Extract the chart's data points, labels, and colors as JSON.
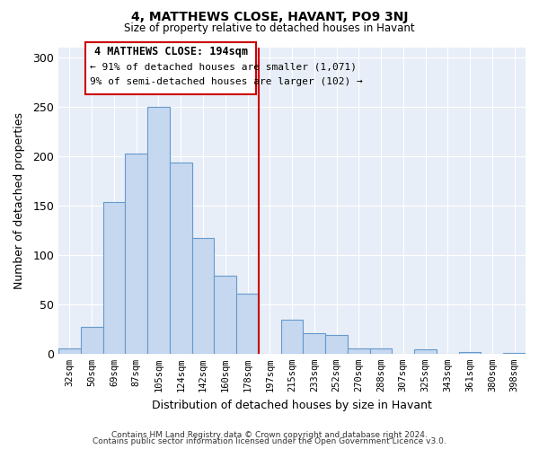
{
  "title": "4, MATTHEWS CLOSE, HAVANT, PO9 3NJ",
  "subtitle": "Size of property relative to detached houses in Havant",
  "xlabel": "Distribution of detached houses by size in Havant",
  "ylabel": "Number of detached properties",
  "footer_line1": "Contains HM Land Registry data © Crown copyright and database right 2024.",
  "footer_line2": "Contains public sector information licensed under the Open Government Licence v3.0.",
  "bin_labels": [
    "32sqm",
    "50sqm",
    "69sqm",
    "87sqm",
    "105sqm",
    "124sqm",
    "142sqm",
    "160sqm",
    "178sqm",
    "197sqm",
    "215sqm",
    "233sqm",
    "252sqm",
    "270sqm",
    "288sqm",
    "307sqm",
    "325sqm",
    "343sqm",
    "361sqm",
    "380sqm",
    "398sqm"
  ],
  "bar_values": [
    5,
    27,
    153,
    202,
    250,
    193,
    117,
    79,
    61,
    0,
    34,
    21,
    19,
    5,
    5,
    0,
    4,
    0,
    2,
    0,
    1
  ],
  "bar_color": "#c5d8f0",
  "bar_edge_color": "#6699cc",
  "vline_color": "#cc0000",
  "annotation_title": "4 MATTHEWS CLOSE: 194sqm",
  "annotation_line1": "← 91% of detached houses are smaller (1,071)",
  "annotation_line2": "9% of semi-detached houses are larger (102) →",
  "ylim": [
    0,
    310
  ],
  "yticks": [
    0,
    50,
    100,
    150,
    200,
    250,
    300
  ],
  "bg_color": "#e8eef7",
  "grid_color": "#ffffff"
}
